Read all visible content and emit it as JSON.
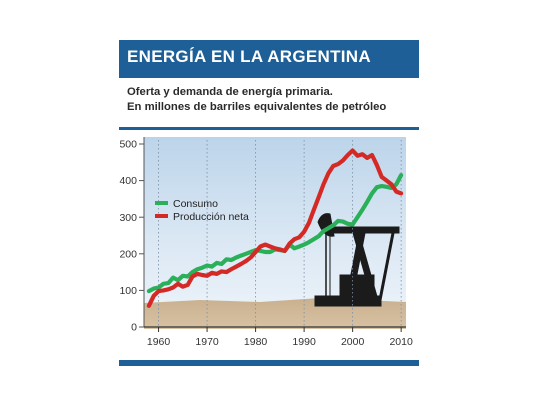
{
  "header": {
    "title": "ENERGÍA EN LA ARGENTINA"
  },
  "subtitle": {
    "line1": "Oferta y demanda de energía primaria.",
    "line2": "En millones de barriles equivalentes de petróleo"
  },
  "colors": {
    "brand_blue": "#1d5f96",
    "consumo": "#2bb05a",
    "produccion": "#d42a26"
  },
  "chart_data": {
    "type": "line",
    "title": "",
    "xlabel": "",
    "ylabel": "",
    "xlim": [
      1957,
      2011
    ],
    "ylim": [
      0,
      500
    ],
    "grid": "vertical dotted lines at decade ticks",
    "legend_position": "upper-left",
    "x_ticks": [
      1960,
      1970,
      1980,
      1990,
      2000,
      2010
    ],
    "x_tick_labels": [
      "1960",
      "1970",
      "1980",
      "1990",
      "2000",
      "2010"
    ],
    "y_ticks": [
      0,
      100,
      200,
      300,
      400,
      500
    ],
    "y_tick_labels": [
      "0",
      "100",
      "200",
      "300",
      "400",
      "500"
    ],
    "series": [
      {
        "name": "Consumo",
        "color": "#2bb05a",
        "x": [
          1958,
          1959,
          1960,
          1961,
          1962,
          1963,
          1964,
          1965,
          1966,
          1967,
          1968,
          1969,
          1970,
          1971,
          1972,
          1973,
          1974,
          1975,
          1976,
          1977,
          1978,
          1979,
          1980,
          1981,
          1982,
          1983,
          1984,
          1985,
          1986,
          1987,
          1988,
          1989,
          1990,
          1991,
          1992,
          1993,
          1994,
          1995,
          1996,
          1997,
          1998,
          1999,
          2000,
          2001,
          2002,
          2003,
          2004,
          2005,
          2006,
          2007,
          2008,
          2009,
          2010
        ],
        "y": [
          98,
          105,
          108,
          118,
          120,
          135,
          128,
          140,
          138,
          150,
          158,
          162,
          168,
          165,
          175,
          172,
          185,
          183,
          190,
          195,
          200,
          205,
          210,
          208,
          205,
          205,
          212,
          210,
          208,
          225,
          215,
          220,
          225,
          232,
          240,
          248,
          262,
          270,
          278,
          290,
          288,
          282,
          280,
          300,
          320,
          342,
          365,
          382,
          385,
          383,
          380,
          390,
          415
        ]
      },
      {
        "name": "Producción neta",
        "color": "#d42a26",
        "x": [
          1958,
          1959,
          1960,
          1961,
          1962,
          1963,
          1964,
          1965,
          1966,
          1967,
          1968,
          1969,
          1970,
          1971,
          1972,
          1973,
          1974,
          1975,
          1976,
          1977,
          1978,
          1979,
          1980,
          1981,
          1982,
          1983,
          1984,
          1985,
          1986,
          1987,
          1988,
          1989,
          1990,
          1991,
          1992,
          1993,
          1994,
          1995,
          1996,
          1997,
          1998,
          1999,
          2000,
          2001,
          2002,
          2003,
          2004,
          2005,
          2006,
          2007,
          2008,
          2009,
          2010
        ],
        "y": [
          58,
          85,
          98,
          100,
          103,
          108,
          118,
          110,
          115,
          138,
          145,
          142,
          140,
          148,
          145,
          152,
          150,
          158,
          165,
          172,
          180,
          190,
          205,
          220,
          225,
          220,
          215,
          212,
          208,
          228,
          240,
          245,
          260,
          285,
          320,
          355,
          390,
          420,
          440,
          445,
          455,
          470,
          482,
          468,
          472,
          462,
          470,
          442,
          410,
          400,
          390,
          370,
          365
        ]
      }
    ]
  }
}
